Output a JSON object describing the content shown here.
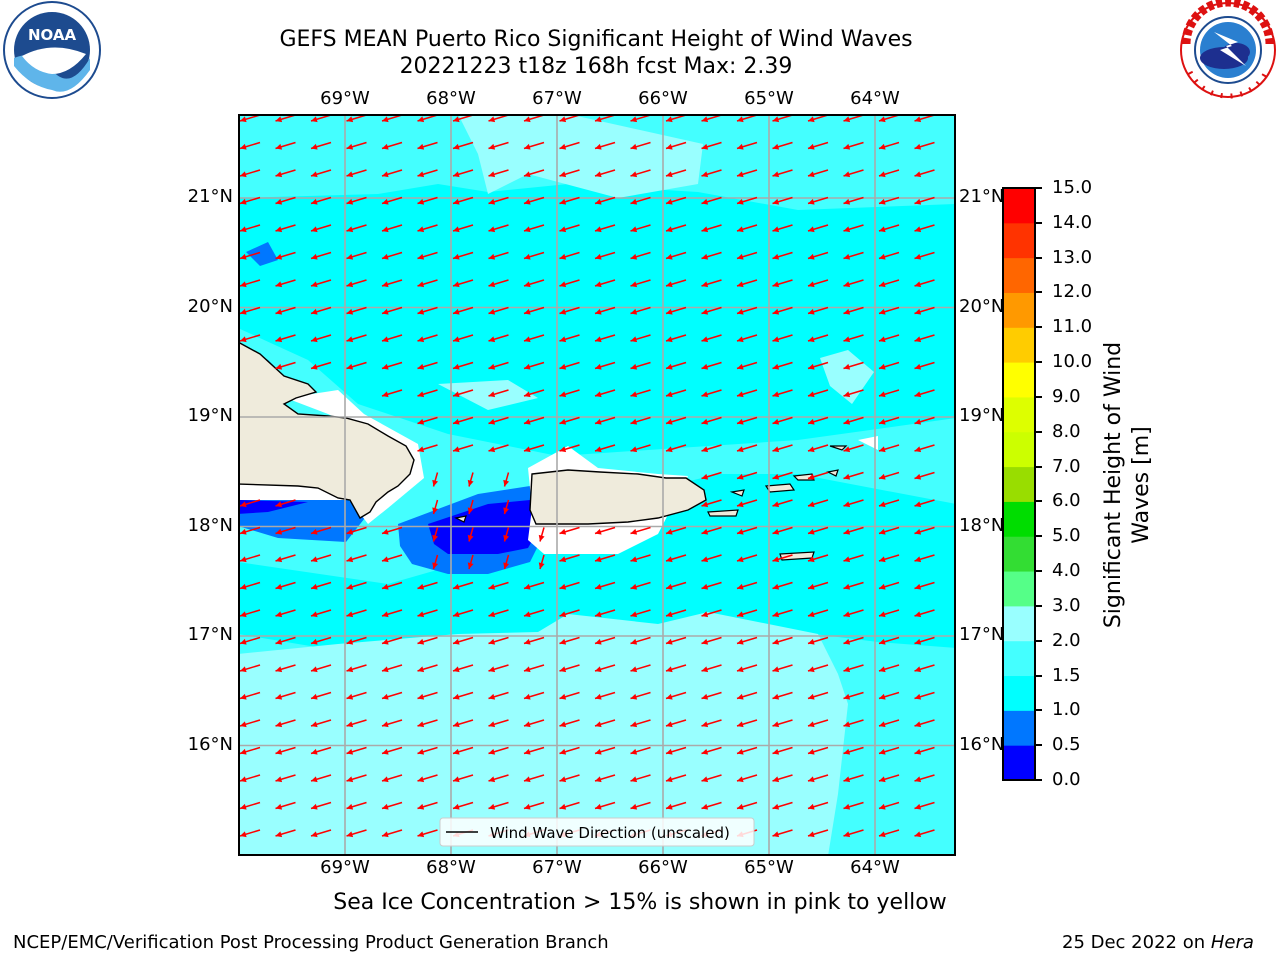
{
  "header": {
    "title_line1": "GEFS MEAN Puerto Rico Significant Height of Wind Waves",
    "title_line2": "20221223 t18z 168h fcst   Max: 2.39"
  },
  "logos": {
    "left": "noaa-logo",
    "right": "national-weather-service-logo",
    "noaa_text": "NOAA"
  },
  "map": {
    "lon_ticks": [
      "69°W",
      "68°W",
      "67°W",
      "66°W",
      "65°W",
      "64°W"
    ],
    "lat_ticks": [
      "21°N",
      "20°N",
      "19°N",
      "18°N",
      "17°N",
      "16°N"
    ],
    "lon_values": [
      -69,
      -68,
      -67,
      -66,
      -65,
      -64
    ],
    "lat_values": [
      21,
      20,
      19,
      18,
      17,
      16
    ],
    "legend_label": "Wind Wave Direction (unscaled)",
    "arrow_color": "#ff0000",
    "land_color": "#efebdc"
  },
  "colorbar": {
    "label_line1": "Significant Height of Wind",
    "label_line2": "Waves [m]",
    "ticks": [
      "0.0",
      "0.5",
      "1.0",
      "1.5",
      "2.0",
      "3.0",
      "4.0",
      "5.0",
      "6.0",
      "7.0",
      "8.0",
      "9.0",
      "10.0",
      "11.0",
      "12.0",
      "13.0",
      "14.0",
      "15.0"
    ],
    "colors": [
      "#0000ff",
      "#0077ff",
      "#00ffff",
      "#44ffff",
      "#99ffff",
      "#55ff88",
      "#33dd33",
      "#00dd00",
      "#99dd00",
      "#ccff00",
      "#ddff00",
      "#ffff00",
      "#ffcc00",
      "#ff9900",
      "#ff6600",
      "#ff3300",
      "#ff0000"
    ]
  },
  "notes": {
    "sea_ice": "Sea Ice Concentration > 15% is shown in pink to yellow"
  },
  "footer": {
    "left": "NCEP/EMC/Verification Post Processing Product Generation Branch",
    "right_date": "25 Dec 2022 on ",
    "right_host": "Hera"
  }
}
